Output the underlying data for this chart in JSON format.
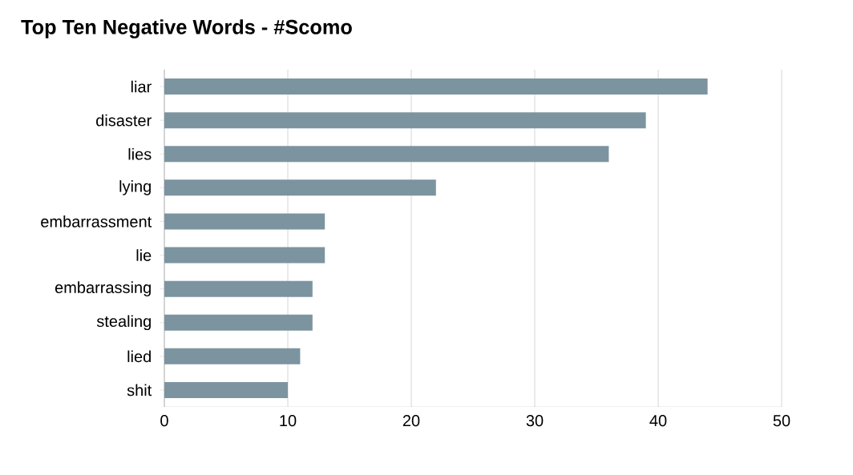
{
  "chart_data": {
    "type": "bar",
    "orientation": "horizontal",
    "title": "Top Ten Negative Words - #Scomo",
    "categories": [
      "liar",
      "disaster",
      "lies",
      "lying",
      "embarrassment",
      "lie",
      "embarrassing",
      "stealing",
      "lied",
      "shit"
    ],
    "values": [
      44,
      39,
      36,
      22,
      13,
      13,
      12,
      12,
      11,
      10
    ],
    "color": "#7b94a0",
    "xlim": [
      0,
      50
    ],
    "xticks": [
      0,
      10,
      20,
      30,
      40,
      50
    ],
    "grid": "x"
  }
}
